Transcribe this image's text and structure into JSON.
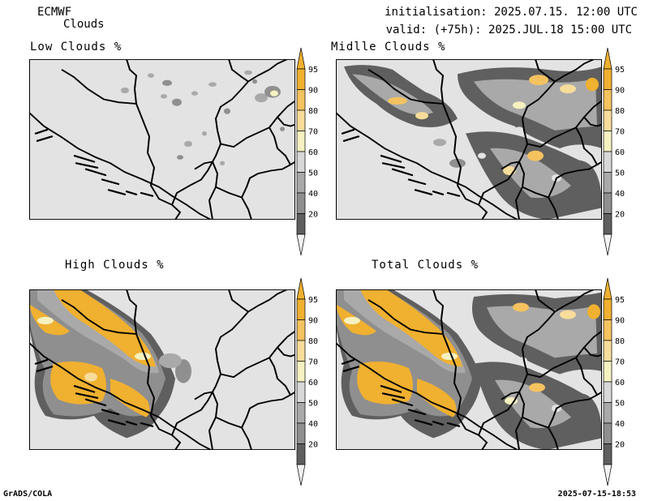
{
  "header": {
    "model": "ECMWF",
    "product": "Clouds",
    "initialisation": "initialisation: 2025.07.15. 12:00 UTC",
    "valid": "valid: (+75h): 2025.JUL.18 15:00 UTC"
  },
  "panels": [
    {
      "key": "low",
      "title": "Low Clouds %"
    },
    {
      "key": "mid",
      "title": "Midlle Clouds %"
    },
    {
      "key": "high",
      "title": "High Clouds %"
    },
    {
      "key": "total",
      "title": "Total Clouds %"
    }
  ],
  "colorbar": {
    "levels": [
      "95",
      "90",
      "80",
      "70",
      "60",
      "50",
      "40",
      "20"
    ],
    "colors": {
      "c95_100": "#f0b030",
      "c90_95": "#f5c260",
      "c80_90": "#f7dc9a",
      "c70_80": "#f5f1c0",
      "c60_70": "#d8d8d8",
      "c50_60": "#a9a9a9",
      "c40_50": "#8f8f8f",
      "c20_40": "#5f5f5f",
      "c0_20": "#f2f2f2"
    }
  },
  "map_background": "#e3e3e3",
  "footer": {
    "left": "GrADS/COLA",
    "right": "2025-07-15-18:53"
  }
}
